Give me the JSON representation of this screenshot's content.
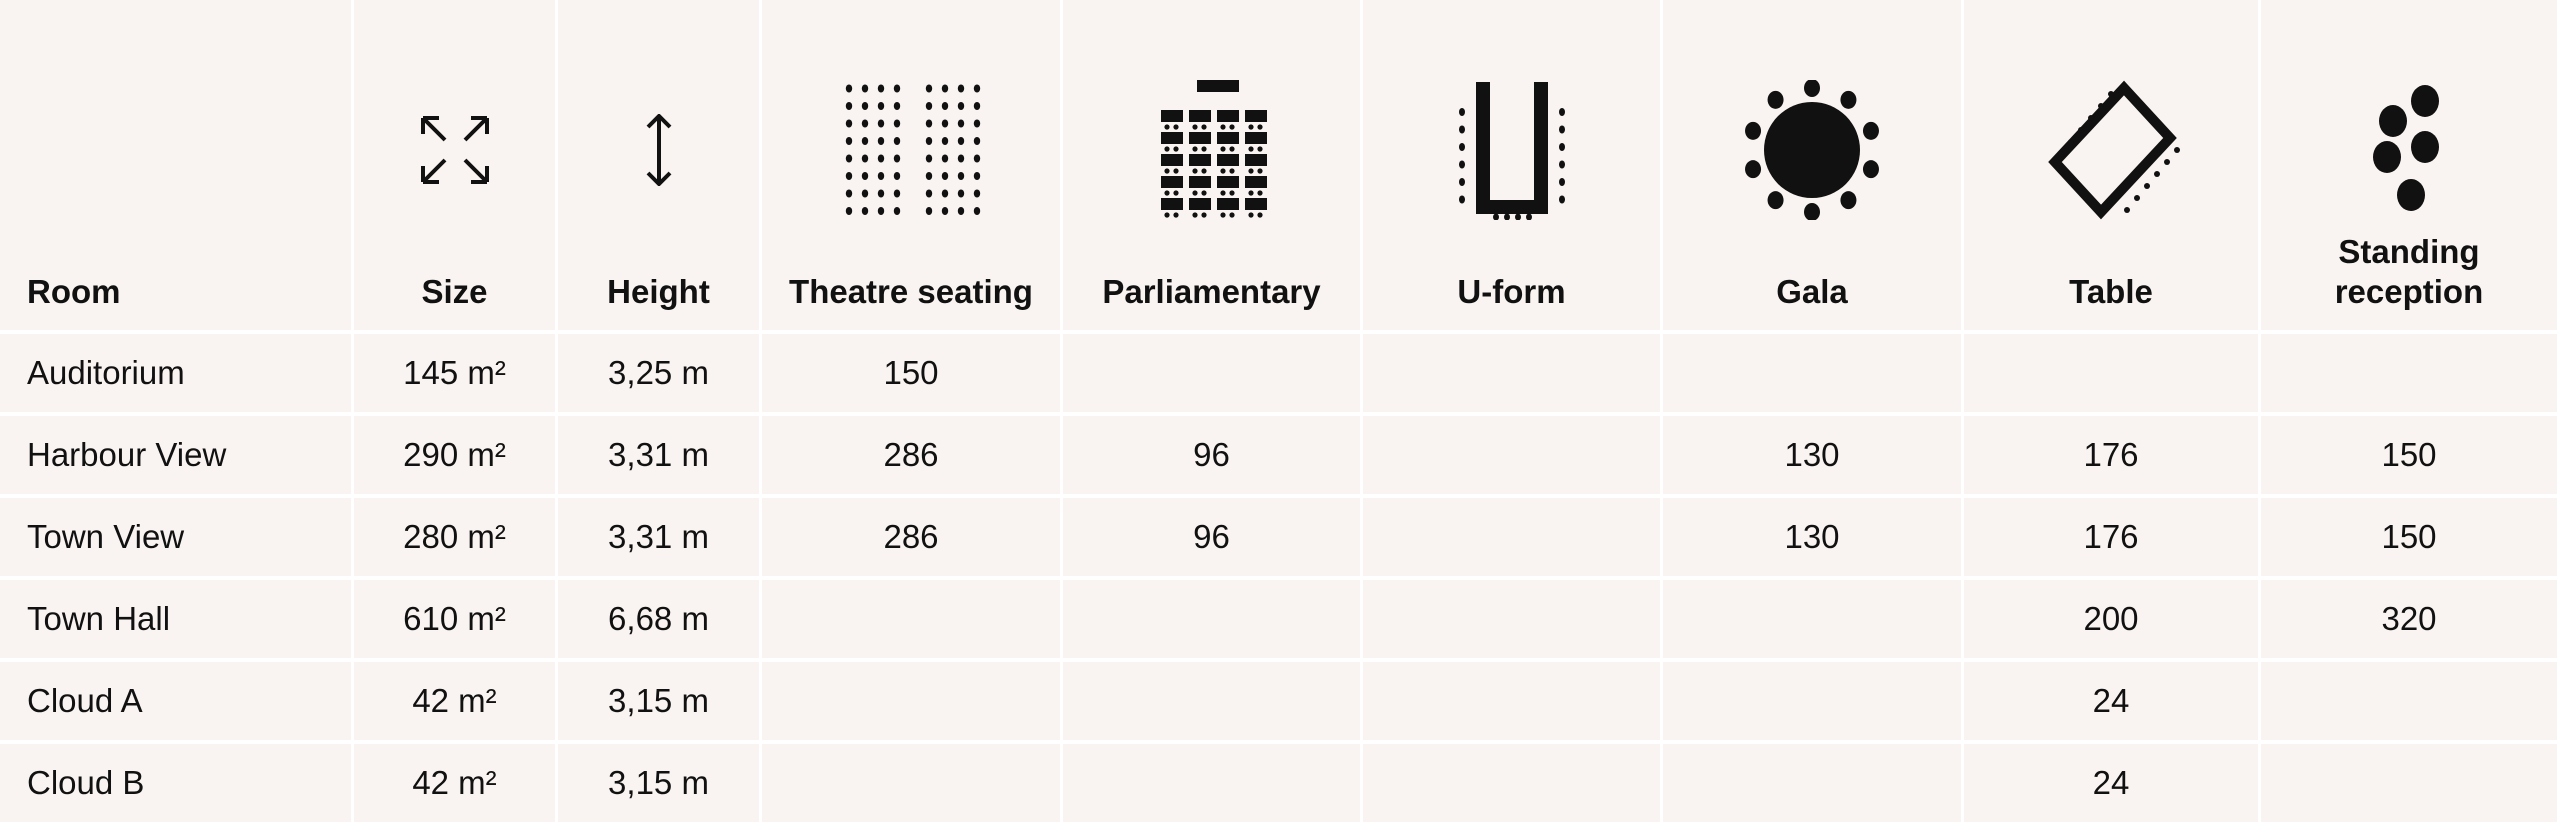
{
  "columns": [
    {
      "label": "Room"
    },
    {
      "label": "Size",
      "icon": "expand-arrows-icon"
    },
    {
      "label": "Height",
      "icon": "vertical-arrow-icon"
    },
    {
      "label": "Theatre seating",
      "icon": "theatre-seating-icon"
    },
    {
      "label": "Parliamentary",
      "icon": "parliamentary-icon"
    },
    {
      "label": "U-form",
      "icon": "u-form-icon"
    },
    {
      "label": "Gala",
      "icon": "gala-icon"
    },
    {
      "label": "Table",
      "icon": "table-icon"
    },
    {
      "label": "Standing reception",
      "icon": "standing-reception-icon"
    }
  ],
  "rows": [
    [
      "Auditorium",
      "145 m²",
      "3,25 m",
      "150",
      "",
      "",
      "",
      "",
      ""
    ],
    [
      "Harbour View",
      "290 m²",
      "3,31 m",
      "286",
      "96",
      "",
      "130",
      "176",
      "150"
    ],
    [
      "Town View",
      "280 m²",
      "3,31 m",
      "286",
      "96",
      "",
      "130",
      "176",
      "150"
    ],
    [
      "Town Hall",
      "610 m²",
      "6,68 m",
      "",
      "",
      "",
      "",
      "200",
      "320"
    ],
    [
      "Cloud A",
      "42 m²",
      "3,15 m",
      "",
      "",
      "",
      "",
      "24",
      ""
    ],
    [
      "Cloud B",
      "42 m²",
      "3,15 m",
      "",
      "",
      "",
      "",
      "24",
      ""
    ]
  ],
  "colors": {
    "cell_background": "#f9f4f1",
    "grid_lines": "#ffffff",
    "text": "#111111"
  }
}
